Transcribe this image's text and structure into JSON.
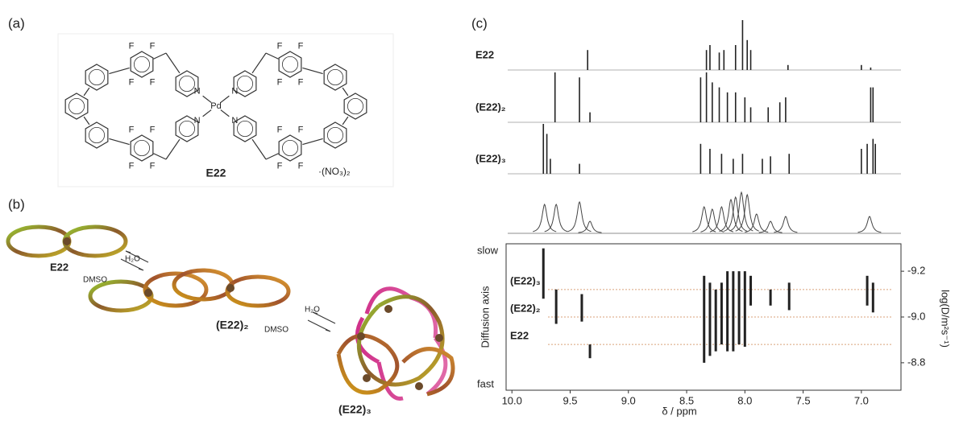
{
  "panel_a": {
    "label": "(a)",
    "compound": "E22",
    "counterion": "·(NO₃)₂",
    "metal": "Pd",
    "fluorine": "F",
    "nitrogen": "N"
  },
  "panel_b": {
    "label": "(b)",
    "monomer": "E22",
    "dimer": "(E22)₂",
    "trimer": "(E22)₃",
    "water": "H₂O",
    "dmso": "DMSO"
  },
  "panel_c": {
    "label": "(c)",
    "spectra": [
      {
        "name": "E22",
        "peaks": [
          [
            9.35,
            0.4
          ],
          [
            8.33,
            0.4
          ],
          [
            8.3,
            0.5
          ],
          [
            8.22,
            0.35
          ],
          [
            8.18,
            0.4
          ],
          [
            8.08,
            0.5
          ],
          [
            8.02,
            1.0
          ],
          [
            7.98,
            0.6
          ],
          [
            7.95,
            0.4
          ],
          [
            7.63,
            0.1
          ],
          [
            7.0,
            0.1
          ],
          [
            6.92,
            0.05
          ]
        ]
      },
      {
        "name": "(E22)₂",
        "peaks": [
          [
            9.63,
            1.0
          ],
          [
            9.42,
            0.9
          ],
          [
            9.33,
            0.2
          ],
          [
            8.38,
            0.9
          ],
          [
            8.33,
            1.0
          ],
          [
            8.28,
            0.8
          ],
          [
            8.22,
            0.7
          ],
          [
            8.15,
            0.6
          ],
          [
            8.08,
            0.6
          ],
          [
            8.0,
            0.5
          ],
          [
            7.95,
            0.3
          ],
          [
            7.8,
            0.3
          ],
          [
            7.7,
            0.4
          ],
          [
            7.65,
            0.5
          ],
          [
            6.92,
            0.7
          ],
          [
            6.9,
            0.7
          ]
        ]
      },
      {
        "name": "(E22)₃",
        "peaks": [
          [
            9.73,
            1.0
          ],
          [
            9.7,
            0.8
          ],
          [
            9.67,
            0.3
          ],
          [
            9.42,
            0.2
          ],
          [
            8.38,
            0.6
          ],
          [
            8.3,
            0.5
          ],
          [
            8.2,
            0.4
          ],
          [
            8.1,
            0.3
          ],
          [
            8.02,
            0.4
          ],
          [
            7.85,
            0.3
          ],
          [
            7.78,
            0.35
          ],
          [
            7.62,
            0.4
          ],
          [
            7.0,
            0.5
          ],
          [
            6.95,
            0.6
          ],
          [
            6.9,
            0.7
          ],
          [
            6.88,
            0.6
          ]
        ]
      }
    ],
    "sum_trace": {
      "peaks": [
        [
          9.72,
          0.6
        ],
        [
          9.62,
          0.6
        ],
        [
          9.42,
          0.65
        ],
        [
          9.33,
          0.25
        ],
        [
          8.35,
          0.55
        ],
        [
          8.28,
          0.5
        ],
        [
          8.2,
          0.55
        ],
        [
          8.12,
          0.7
        ],
        [
          8.08,
          0.75
        ],
        [
          8.03,
          0.85
        ],
        [
          7.98,
          0.8
        ],
        [
          7.9,
          0.4
        ],
        [
          7.78,
          0.25
        ],
        [
          7.65,
          0.35
        ],
        [
          6.93,
          0.35
        ]
      ]
    },
    "dosy": {
      "xlim": [
        10.05,
        6.66
      ],
      "xticks": [
        {
          "value": 10,
          "label": "10.0"
        },
        9.5,
        {
          "value": 9,
          "label": "9.0"
        },
        8.5,
        {
          "value": 8,
          "label": "8.0"
        },
        7.5,
        {
          "value": 7,
          "label": "7.0"
        }
      ],
      "ylim": [
        -9.32,
        -8.68
      ],
      "yticks": [
        -9.2,
        {
          "value": -9,
          "label": "-9.0"
        },
        -8.8
      ],
      "xlabel": "δ / ppm",
      "ylabel": "log(D/m²s⁻¹)",
      "axis_label": "Diffusion axis",
      "top_label": "slow",
      "bottom_label": "fast",
      "levels": [
        {
          "name": "(E22)₃",
          "value": -9.12
        },
        {
          "name": "(E22)₂",
          "value": -9.0
        },
        {
          "name": "E22",
          "value": -8.88
        }
      ],
      "streaks": [
        [
          9.73,
          -9.3,
          -9.08
        ],
        [
          9.62,
          -9.12,
          -8.97
        ],
        [
          9.4,
          -9.1,
          -8.98
        ],
        [
          9.33,
          -8.88,
          -8.82
        ],
        [
          8.35,
          -9.18,
          -8.8
        ],
        [
          8.3,
          -9.15,
          -8.83
        ],
        [
          8.25,
          -9.12,
          -8.85
        ],
        [
          8.2,
          -9.15,
          -8.88
        ],
        [
          8.15,
          -9.2,
          -8.85
        ],
        [
          8.1,
          -9.2,
          -8.85
        ],
        [
          8.05,
          -9.2,
          -8.88
        ],
        [
          8.0,
          -9.2,
          -8.87
        ],
        [
          7.95,
          -9.18,
          -9.05
        ],
        [
          7.78,
          -9.12,
          -9.05
        ],
        [
          7.62,
          -9.15,
          -9.03
        ],
        [
          6.95,
          -9.18,
          -9.05
        ],
        [
          6.9,
          -9.15,
          -9.02
        ]
      ]
    }
  }
}
